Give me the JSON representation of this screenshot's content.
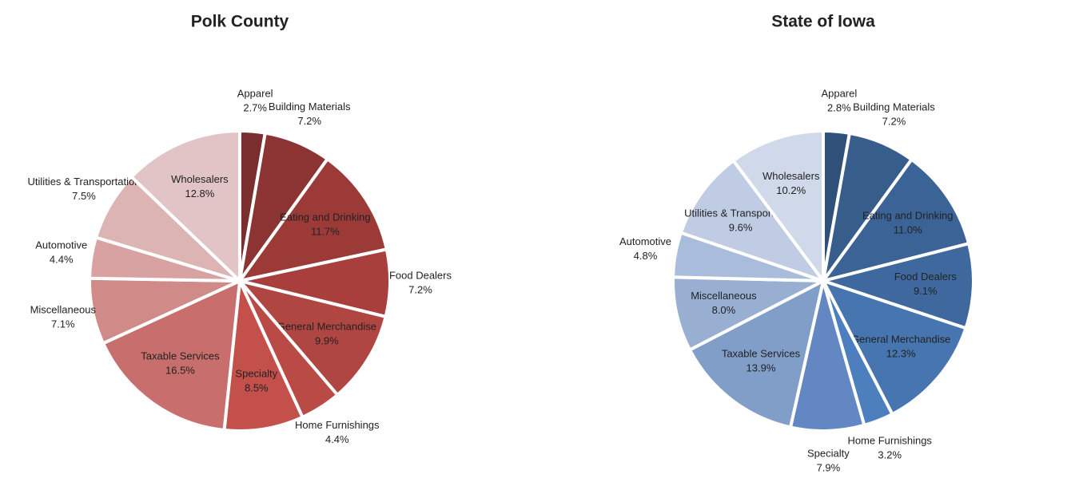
{
  "chart_data": [
    {
      "type": "pie",
      "title": "Polk County",
      "categories": [
        "Apparel",
        "Building Materials",
        "Eating and Drinking",
        "Food Dealers",
        "General Merchandise",
        "Home Furnishings",
        "Specialty",
        "Taxable Services",
        "Miscellaneous",
        "Automotive",
        "Utilities & Transportation",
        "Wholesalers"
      ],
      "values": [
        2.7,
        7.2,
        11.7,
        7.2,
        9.9,
        4.4,
        8.5,
        16.5,
        7.1,
        4.4,
        7.5,
        12.8
      ],
      "value_labels": [
        "2.7%",
        "7.2%",
        "11.7%",
        "7.2%",
        "9.9%",
        "4.4%",
        "8.5%",
        "16.5%",
        "7.1%",
        "4.4%",
        "7.5%",
        "12.8%"
      ],
      "colors": [
        "#7a2e2e",
        "#8c3333",
        "#9c3a38",
        "#a83f3c",
        "#b04642",
        "#b94a46",
        "#c4504c",
        "#c86e6c",
        "#d08a88",
        "#d8a2a2",
        "#ddb4b4",
        "#e2c4c6"
      ]
    },
    {
      "type": "pie",
      "title": "State of Iowa",
      "categories": [
        "Apparel",
        "Building Materials",
        "Eating and Drinking",
        "Food Dealers",
        "General Merchandise",
        "Home Furnishings",
        "Specialty",
        "Taxable Services",
        "Miscellaneous",
        "Automotive",
        "Utilities & Transportation",
        "Wholesalers"
      ],
      "values": [
        2.8,
        7.2,
        11.0,
        9.1,
        12.3,
        3.2,
        7.9,
        13.9,
        8.0,
        4.8,
        9.6,
        10.2
      ],
      "value_labels": [
        "2.8%",
        "7.2%",
        "11.0%",
        "9.1%",
        "12.3%",
        "3.2%",
        "7.9%",
        "13.9%",
        "8.0%",
        "4.8%",
        "9.6%",
        "10.2%"
      ],
      "colors": [
        "#2f5078",
        "#375d8a",
        "#3b6395",
        "#3f699e",
        "#4675af",
        "#4d7ebd",
        "#6287c2",
        "#819ec9",
        "#98afd2",
        "#aabcdb",
        "#bfcce3",
        "#d0d9ea"
      ]
    }
  ]
}
